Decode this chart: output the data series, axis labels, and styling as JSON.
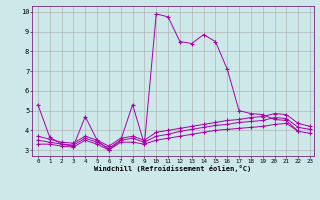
{
  "xlabel": "Windchill (Refroidissement éolien,°C)",
  "background_color": "#cce8e8",
  "grid_color": "#aaaaaa",
  "line_color": "#aa00aa",
  "xlim": [
    -0.5,
    23.3
  ],
  "ylim": [
    2.7,
    10.3
  ],
  "xticks": [
    0,
    1,
    2,
    3,
    4,
    5,
    6,
    7,
    8,
    9,
    10,
    11,
    12,
    13,
    14,
    15,
    16,
    17,
    18,
    19,
    20,
    21,
    22,
    23
  ],
  "yticks": [
    3,
    4,
    5,
    6,
    7,
    8,
    9,
    10
  ],
  "line1_x": [
    0,
    1,
    2,
    3,
    4,
    5,
    6,
    7,
    8,
    9,
    10,
    11,
    12,
    13,
    14,
    15,
    16,
    17,
    18,
    19,
    20,
    21,
    22
  ],
  "line1_y": [
    5.3,
    3.65,
    3.3,
    3.2,
    4.7,
    3.5,
    3.0,
    3.5,
    5.3,
    3.3,
    9.9,
    9.75,
    8.5,
    8.4,
    8.85,
    8.5,
    7.1,
    5.0,
    4.85,
    4.8,
    4.55,
    4.5,
    3.95
  ],
  "line2_x": [
    0,
    1,
    2,
    3,
    4,
    5,
    6,
    7,
    8,
    9,
    10,
    11,
    12,
    13,
    14,
    15,
    16,
    17,
    18,
    19,
    20,
    21,
    22,
    23
  ],
  "line2_y": [
    3.3,
    3.3,
    3.2,
    3.15,
    3.5,
    3.3,
    3.0,
    3.4,
    3.4,
    3.3,
    3.5,
    3.6,
    3.7,
    3.8,
    3.9,
    4.0,
    4.05,
    4.1,
    4.15,
    4.2,
    4.3,
    4.35,
    3.95,
    3.85
  ],
  "line3_x": [
    0,
    1,
    2,
    3,
    4,
    5,
    6,
    7,
    8,
    9,
    10,
    11,
    12,
    13,
    14,
    15,
    16,
    17,
    18,
    19,
    20,
    21,
    22,
    23
  ],
  "line3_y": [
    3.5,
    3.4,
    3.3,
    3.25,
    3.6,
    3.4,
    3.1,
    3.5,
    3.6,
    3.4,
    3.7,
    3.8,
    3.95,
    4.05,
    4.15,
    4.25,
    4.3,
    4.4,
    4.45,
    4.5,
    4.65,
    4.6,
    4.15,
    4.05
  ],
  "line4_x": [
    0,
    1,
    2,
    3,
    4,
    5,
    6,
    7,
    8,
    9,
    10,
    11,
    12,
    13,
    14,
    15,
    16,
    17,
    18,
    19,
    20,
    21,
    22,
    23
  ],
  "line4_y": [
    3.7,
    3.55,
    3.4,
    3.35,
    3.7,
    3.5,
    3.2,
    3.6,
    3.7,
    3.5,
    3.9,
    4.0,
    4.1,
    4.2,
    4.3,
    4.4,
    4.5,
    4.55,
    4.65,
    4.7,
    4.85,
    4.8,
    4.35,
    4.2
  ]
}
